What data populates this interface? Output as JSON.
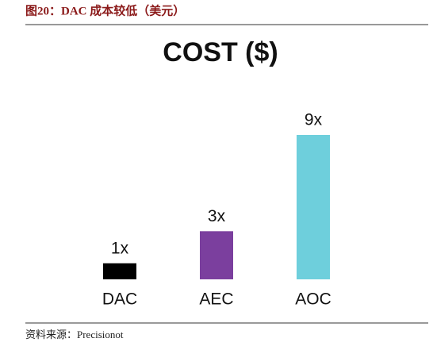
{
  "header": "图20：DAC 成本较低（美元）",
  "source": "资料来源：Precisionot",
  "chart_data": {
    "type": "bar",
    "title": "COST ($)",
    "categories": [
      "DAC",
      "AEC",
      "AOC"
    ],
    "values": [
      1,
      3,
      9
    ],
    "value_labels": [
      "1x",
      "3x",
      "9x"
    ],
    "colors": [
      "#000000",
      "#7b3f9e",
      "#6ecfdc"
    ]
  }
}
